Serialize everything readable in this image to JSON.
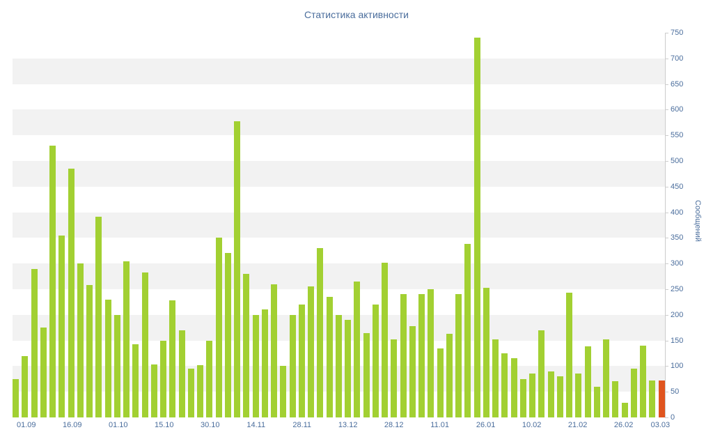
{
  "chart_data": {
    "type": "bar",
    "title": "Статистика активности",
    "xlabel": "",
    "ylabel": "Сообщений",
    "ylim": [
      0,
      750
    ],
    "y_ticks": [
      0,
      50,
      100,
      150,
      200,
      250,
      300,
      350,
      400,
      450,
      500,
      550,
      600,
      650,
      700,
      750
    ],
    "grid": "alternating horizontal bands every 50 units",
    "legend": "none",
    "values": [
      75,
      120,
      290,
      175,
      530,
      355,
      485,
      300,
      258,
      392,
      230,
      200,
      305,
      143,
      283,
      103,
      150,
      228,
      170,
      95,
      102,
      150,
      350,
      320,
      578,
      280,
      200,
      210,
      260,
      100,
      200,
      220,
      255,
      330,
      235,
      200,
      190,
      265,
      165,
      220,
      302,
      152,
      240,
      178,
      240,
      250,
      135,
      163,
      240,
      338,
      740,
      253,
      152,
      125,
      115,
      75,
      85,
      170,
      90,
      80,
      243,
      85,
      138,
      60,
      152,
      70,
      28,
      95,
      140,
      72,
      72
    ],
    "highlight_last_bar": true,
    "x_tick_labels": [
      {
        "label": "01.09",
        "index": 1
      },
      {
        "label": "16.09",
        "index": 6
      },
      {
        "label": "01.10",
        "index": 11
      },
      {
        "label": "15.10",
        "index": 16
      },
      {
        "label": "30.10",
        "index": 21
      },
      {
        "label": "14.11",
        "index": 26
      },
      {
        "label": "28.11",
        "index": 31
      },
      {
        "label": "13.12",
        "index": 36
      },
      {
        "label": "28.12",
        "index": 41
      },
      {
        "label": "11.01",
        "index": 46
      },
      {
        "label": "26.01",
        "index": 51
      },
      {
        "label": "10.02",
        "index": 56
      },
      {
        "label": "21.02",
        "index": 61
      },
      {
        "label": "26.02",
        "index": 66
      },
      {
        "label": "03.03",
        "index": 70
      }
    ],
    "colors": {
      "bar": "#a2d032",
      "bar_highlight": "#e0541e",
      "label": "#4a6d9c",
      "band": "#f2f2f2",
      "axis": "#cccccc",
      "background": "#ffffff"
    }
  }
}
